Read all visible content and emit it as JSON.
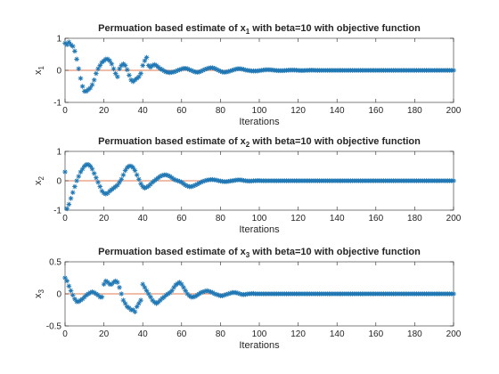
{
  "chart_data": [
    {
      "type": "scatter",
      "title": "Permuation based estimate of x_1 with beta=10 with objective function",
      "title_parts": {
        "pre": "Permuation based estimate of x",
        "sub": "1",
        "post": " with beta=10 with objective function"
      },
      "xlabel": "Iterations",
      "ylabel": "x",
      "ylabel_sub": "1",
      "xlim": [
        0,
        200
      ],
      "ylim": [
        -1,
        1
      ],
      "xticks": [
        0,
        20,
        40,
        60,
        80,
        100,
        120,
        140,
        160,
        180,
        200
      ],
      "yticks": [
        -1,
        0,
        1
      ],
      "reference_line": 0,
      "grid": false,
      "x_step": 1,
      "values": [
        0.85,
        0.8,
        0.88,
        0.8,
        0.75,
        0.6,
        0.35,
        0.05,
        -0.25,
        -0.5,
        -0.65,
        -0.65,
        -0.6,
        -0.55,
        -0.45,
        -0.3,
        -0.1,
        0.05,
        0.15,
        0.25,
        0.3,
        0.35,
        0.35,
        0.3,
        0.2,
        0.05,
        -0.1,
        -0.2,
        0.05,
        0.15,
        0.2,
        0.15,
        0.02,
        -0.15,
        -0.3,
        -0.35,
        -0.3,
        -0.25,
        -0.2,
        -0.1,
        0.15,
        0.3,
        0.4,
        0.15,
        0.1,
        0.15,
        0.18,
        0.15,
        0.1,
        0.05,
        0.02,
        -0.02,
        -0.05,
        -0.06,
        -0.07,
        -0.06,
        -0.05,
        -0.03,
        0,
        0.02,
        0.04,
        0.06,
        0.06,
        0.05,
        0.02,
        0,
        -0.03,
        -0.05,
        -0.06,
        -0.05,
        -0.03,
        0,
        0.03,
        0.05,
        0.07,
        0.08,
        0.08,
        0.06,
        0.03,
        0,
        -0.03,
        -0.05,
        -0.06,
        -0.05,
        -0.04,
        -0.02,
        0,
        0.02,
        0.04,
        0.05,
        0.05,
        0.04,
        0.03,
        0.01,
        0,
        -0.01,
        -0.02,
        -0.02,
        -0.02,
        -0.02,
        -0.01,
        0,
        0.01,
        0.015,
        0.02,
        0.02,
        0.015,
        0.01,
        0,
        -0.005,
        -0.01,
        -0.01,
        -0.01,
        -0.005,
        0,
        0.005,
        0.01,
        0.01,
        0.01,
        0.005,
        0,
        -0.005,
        -0.005,
        -0.005,
        0,
        0,
        0.005,
        0.005,
        0.005,
        0,
        0,
        0,
        0,
        0,
        0,
        0,
        0,
        0,
        0,
        0,
        0,
        0,
        0,
        0,
        0,
        0,
        0,
        0,
        0,
        0,
        0,
        0,
        0,
        0,
        0,
        0,
        0,
        0,
        0,
        0,
        0,
        0,
        0,
        0,
        0,
        0,
        0,
        0,
        0,
        0,
        0,
        0,
        0,
        0,
        0,
        0,
        0,
        0,
        0,
        0,
        0,
        0,
        0,
        0,
        0,
        0,
        0,
        0,
        0,
        0,
        0,
        0,
        0,
        0,
        0,
        0,
        0,
        0,
        0,
        0,
        0,
        0,
        0,
        0,
        0,
        0
      ]
    },
    {
      "type": "scatter",
      "title": "Permuation based estimate of x_2 with beta=10 with objective function",
      "title_parts": {
        "pre": "Permuation based estimate of x",
        "sub": "2",
        "post": " with beta=10 with objective function"
      },
      "xlabel": "Iterations",
      "ylabel": "x",
      "ylabel_sub": "2",
      "xlim": [
        0,
        200
      ],
      "ylim": [
        -1,
        1
      ],
      "xticks": [
        0,
        20,
        40,
        60,
        80,
        100,
        120,
        140,
        160,
        180,
        200
      ],
      "yticks": [
        -1,
        0,
        1
      ],
      "reference_line": 0,
      "grid": false,
      "x_step": 1,
      "values": [
        0.3,
        -0.95,
        -0.8,
        -0.6,
        -0.4,
        -0.2,
        0,
        0.15,
        0.3,
        0.4,
        0.5,
        0.55,
        0.55,
        0.5,
        0.4,
        0.25,
        0.1,
        -0.05,
        -0.2,
        -0.35,
        -0.42,
        -0.45,
        -0.42,
        -0.35,
        -0.3,
        -0.25,
        -0.2,
        -0.15,
        -0.05,
        0.05,
        0.2,
        0.35,
        0.45,
        0.5,
        0.5,
        0.45,
        0.35,
        0.2,
        0.05,
        -0.1,
        -0.2,
        -0.25,
        -0.22,
        -0.18,
        -0.12,
        -0.05,
        0,
        0.05,
        0.1,
        0.15,
        0.18,
        0.2,
        0.2,
        0.18,
        0.15,
        0.1,
        0.05,
        0.02,
        0,
        -0.02,
        -0.05,
        -0.1,
        -0.15,
        -0.18,
        -0.2,
        -0.2,
        -0.18,
        -0.15,
        -0.12,
        -0.08,
        -0.05,
        -0.02,
        0,
        0.02,
        0.03,
        0.04,
        0.04,
        0.03,
        0.02,
        0,
        -0.01,
        -0.02,
        -0.03,
        -0.03,
        -0.02,
        -0.01,
        0,
        0.01,
        0.02,
        0.03,
        0.03,
        0.02,
        0.01,
        0,
        -0.01,
        -0.01,
        -0.01,
        0,
        0,
        0.005,
        0.005,
        0,
        0,
        0,
        0,
        0,
        0,
        0,
        0,
        0,
        0,
        0,
        0,
        0,
        0,
        0,
        0,
        0,
        0,
        0,
        0,
        0,
        0,
        0,
        0,
        0,
        0,
        0,
        0,
        0,
        0,
        0,
        0,
        0,
        0,
        0,
        0,
        0,
        0,
        0,
        0,
        0,
        0,
        0,
        0,
        0,
        0,
        0,
        0,
        0,
        0,
        0,
        0,
        0,
        0,
        0,
        0,
        0,
        0,
        0,
        0,
        0,
        0,
        0,
        0,
        0,
        0,
        0,
        0,
        0,
        0,
        0,
        0,
        0,
        0,
        0,
        0,
        0,
        0,
        0,
        0,
        0,
        0,
        0,
        0,
        0,
        0,
        0,
        0,
        0,
        0,
        0,
        0,
        0,
        0,
        0,
        0,
        0,
        0,
        0,
        0,
        0,
        0,
        0,
        0
      ]
    },
    {
      "type": "scatter",
      "title": "Permuation based estimate of x_3 with beta=10 with objective function",
      "title_parts": {
        "pre": "Permuation based estimate of x",
        "sub": "3",
        "post": " with beta=10 with objective function"
      },
      "xlabel": "Iterations",
      "ylabel": "x",
      "ylabel_sub": "3",
      "xlim": [
        0,
        200
      ],
      "ylim": [
        -0.5,
        0.5
      ],
      "xticks": [
        0,
        20,
        40,
        60,
        80,
        100,
        120,
        140,
        160,
        180,
        200
      ],
      "yticks": [
        -0.5,
        0,
        0.5
      ],
      "reference_line": 0,
      "grid": false,
      "x_step": 1,
      "values": [
        0.25,
        0.2,
        0.12,
        0.05,
        -0.02,
        -0.08,
        -0.12,
        -0.12,
        -0.1,
        -0.08,
        -0.05,
        -0.02,
        0,
        0.02,
        0.03,
        0.02,
        0,
        -0.02,
        -0.05,
        -0.05,
        0.15,
        0.2,
        0.18,
        0.15,
        0.15,
        0.18,
        0.2,
        0.18,
        0.1,
        0,
        -0.1,
        -0.15,
        -0.2,
        -0.22,
        -0.25,
        -0.25,
        -0.28,
        -0.2,
        -0.15,
        -0.1,
        0.15,
        0.1,
        0.05,
        0,
        -0.05,
        -0.1,
        -0.13,
        -0.15,
        -0.13,
        -0.1,
        -0.07,
        -0.05,
        -0.02,
        0,
        0.02,
        0.05,
        0.1,
        0.14,
        0.16,
        0.18,
        0.15,
        0.1,
        0.05,
        0,
        -0.03,
        -0.05,
        -0.05,
        -0.04,
        -0.02,
        0,
        0.02,
        0.03,
        0.04,
        0.05,
        0.04,
        0.03,
        0.02,
        0,
        -0.01,
        -0.02,
        -0.03,
        -0.03,
        -0.02,
        -0.01,
        0,
        0.01,
        0.02,
        0.02,
        0.02,
        0.01,
        0,
        -0.01,
        -0.01,
        -0.01,
        0,
        0,
        0.005,
        0.005,
        0,
        0,
        0,
        0,
        0,
        0,
        0,
        0,
        0,
        0,
        0,
        0,
        0,
        0,
        0,
        0,
        0,
        0,
        0,
        0,
        0,
        0,
        0,
        0,
        0,
        0,
        0,
        0,
        0,
        0,
        0,
        0,
        0,
        0,
        0,
        0,
        0,
        0,
        0,
        0,
        0,
        0,
        0,
        0,
        0,
        0,
        0,
        0,
        0,
        0,
        0,
        0,
        0,
        0,
        0,
        0,
        0,
        0,
        0,
        0,
        0,
        0,
        0,
        0,
        0,
        0,
        0,
        0,
        0,
        0,
        0,
        0,
        0,
        0,
        0,
        0,
        0,
        0,
        0,
        0,
        0,
        0,
        0,
        0,
        0,
        0,
        0,
        0,
        0,
        0,
        0,
        0,
        0,
        0,
        0,
        0,
        0,
        0,
        0,
        0,
        0,
        0,
        0,
        0,
        0
      ]
    }
  ],
  "colors": {
    "marker": "#1f77b4",
    "reference": "#d95319",
    "axis": "#262626"
  },
  "marker_symbol": "*"
}
